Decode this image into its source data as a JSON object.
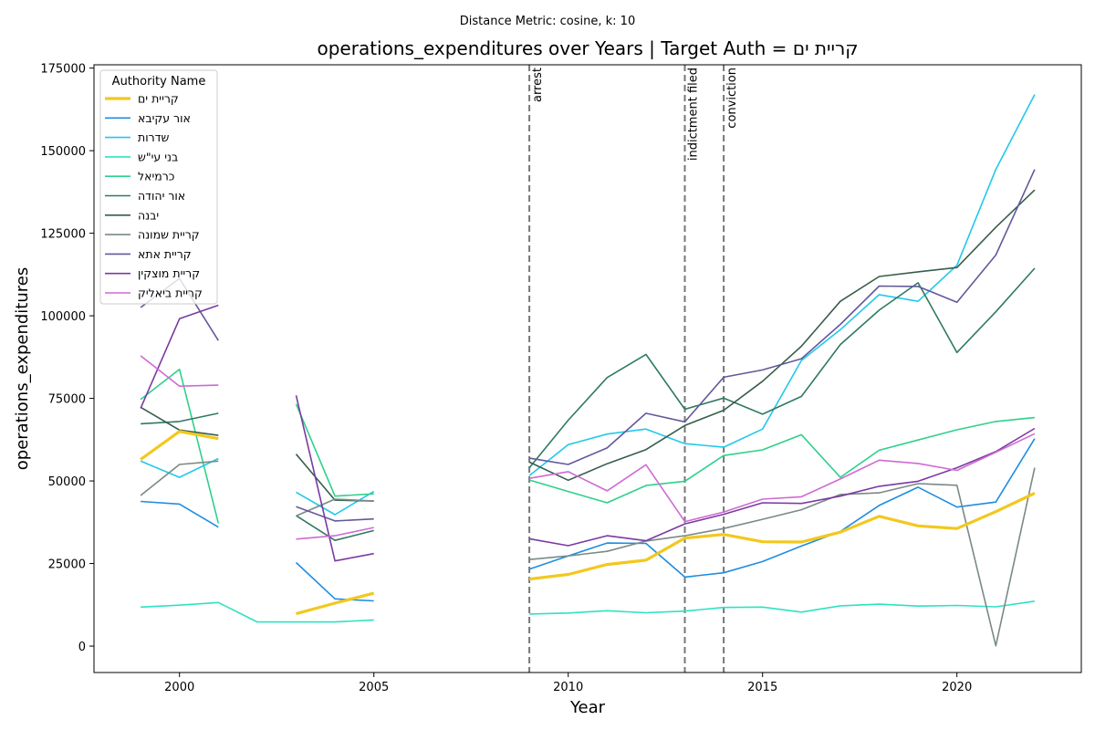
{
  "chart_data": {
    "type": "line",
    "suptitle": "Distance Metric: cosine, k: 10",
    "title": "operations_expenditures over Years | Target Auth = קריית ים",
    "xlabel": "Year",
    "ylabel": "operations_expenditures",
    "xlim": [
      1997.8,
      2023.2
    ],
    "ylim": [
      -8000,
      176000
    ],
    "xticks": [
      2000,
      2005,
      2010,
      2015,
      2020
    ],
    "yticks": [
      0,
      25000,
      50000,
      75000,
      100000,
      125000,
      150000,
      175000
    ],
    "legend_title": "Authority Name",
    "legend_position": "upper-left",
    "events": [
      {
        "x": 2009,
        "label": "arrest"
      },
      {
        "x": 2013,
        "label": "indictment filed"
      },
      {
        "x": 2014,
        "label": "conviction"
      }
    ],
    "x": [
      1999,
      2000,
      2001,
      2002,
      2003,
      2004,
      2005,
      2006,
      2007,
      2008,
      2009,
      2010,
      2011,
      2012,
      2013,
      2014,
      2015,
      2016,
      2017,
      2018,
      2019,
      2020,
      2021,
      2022
    ],
    "series": [
      {
        "name": "קריית ים",
        "color": "#f2c81e",
        "width": 3.2,
        "values": [
          56500,
          65000,
          62800,
          null,
          9800,
          13000,
          16000,
          null,
          null,
          null,
          20300,
          21700,
          24700,
          26000,
          32700,
          33800,
          31600,
          31500,
          34500,
          39300,
          36400,
          35600,
          40700,
          46300
        ]
      },
      {
        "name": "אור עקיבא",
        "color": "#1f8de0",
        "width": 1.6,
        "values": [
          43800,
          43000,
          36000,
          null,
          25300,
          14300,
          13700,
          null,
          null,
          null,
          23300,
          27300,
          31200,
          31100,
          20900,
          22200,
          25600,
          30300,
          34700,
          42600,
          48100,
          42100,
          43600,
          62800
        ]
      },
      {
        "name": "שדרות",
        "color": "#22c8ec",
        "width": 1.6,
        "values": [
          56000,
          51100,
          56800,
          null,
          46600,
          39800,
          46800,
          null,
          null,
          null,
          51600,
          61000,
          64200,
          65700,
          61300,
          60200,
          65700,
          86500,
          95800,
          106400,
          104400,
          115300,
          144300,
          167000
        ]
      },
      {
        "name": "בני עי\"ש",
        "color": "#2ee2c2",
        "width": 1.6,
        "values": [
          11800,
          12400,
          13200,
          7300,
          7300,
          7300,
          7900,
          null,
          null,
          null,
          9700,
          10000,
          10700,
          10100,
          10600,
          11700,
          11800,
          10300,
          12200,
          12700,
          12100,
          12300,
          11900,
          13600
        ]
      },
      {
        "name": "כרמיאל",
        "color": "#2ed08c",
        "width": 1.6,
        "values": [
          74700,
          83800,
          37200,
          null,
          73300,
          45400,
          46100,
          null,
          null,
          null,
          50300,
          46800,
          43400,
          48600,
          49900,
          57700,
          59400,
          64000,
          51100,
          59300,
          62400,
          65500,
          68000,
          69200
        ]
      },
      {
        "name": "אור יהודה",
        "color": "#2f7a62",
        "width": 1.6,
        "values": [
          67300,
          68000,
          70500,
          null,
          39500,
          32000,
          35000,
          null,
          null,
          null,
          54000,
          68400,
          81300,
          88300,
          71700,
          75100,
          70200,
          75600,
          91300,
          101700,
          110000,
          88900,
          101200,
          114400
        ]
      },
      {
        "name": "יבנה",
        "color": "#365e4a",
        "width": 1.6,
        "values": [
          72300,
          65400,
          63800,
          null,
          58100,
          44200,
          43900,
          null,
          null,
          null,
          55700,
          50200,
          55200,
          59500,
          66800,
          71400,
          80200,
          90800,
          104400,
          111900,
          113300,
          114600,
          126800,
          138100
        ]
      },
      {
        "name": "קריית שמונה",
        "color": "#7a8a86",
        "width": 1.6,
        "values": [
          45600,
          55000,
          56000,
          null,
          39400,
          44500,
          43900,
          null,
          null,
          null,
          26200,
          27300,
          28700,
          31800,
          33400,
          35600,
          38400,
          41300,
          45900,
          46400,
          49200,
          48700,
          100,
          54000
        ]
      },
      {
        "name": "קריית אתא",
        "color": "#63599a",
        "width": 1.6,
        "values": [
          102500,
          111300,
          92500,
          null,
          42200,
          37900,
          38500,
          null,
          null,
          null,
          56900,
          55000,
          60000,
          70500,
          67900,
          81400,
          83600,
          87000,
          97400,
          109000,
          108900,
          104100,
          118400,
          144300
        ]
      },
      {
        "name": "קריית מוצקין",
        "color": "#7a3aa2",
        "width": 1.6,
        "values": [
          72000,
          99100,
          103200,
          null,
          75900,
          25800,
          28000,
          null,
          null,
          null,
          32500,
          30400,
          33400,
          31900,
          37000,
          39900,
          43400,
          43200,
          45400,
          48400,
          49900,
          54000,
          58900,
          65900
        ]
      },
      {
        "name": "קריית ביאליק",
        "color": "#cf6ad2",
        "width": 1.6,
        "values": [
          87900,
          78700,
          79000,
          null,
          32400,
          33400,
          35900,
          null,
          null,
          null,
          50800,
          52800,
          47000,
          54900,
          37700,
          40600,
          44500,
          45200,
          50600,
          56300,
          55300,
          53200,
          58700,
          64300
        ]
      }
    ]
  }
}
